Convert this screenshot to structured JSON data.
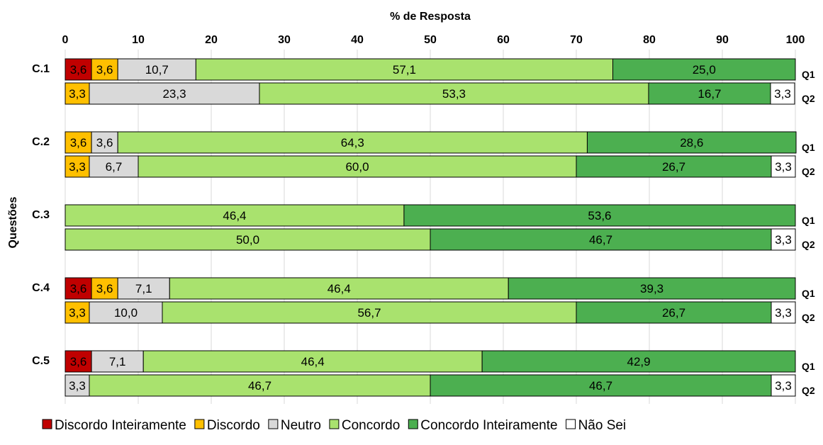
{
  "chart_data": {
    "type": "bar",
    "orientation": "horizontal-stacked",
    "title": "",
    "xlabel": "% de Resposta",
    "ylabel": "Questões",
    "xlim": [
      0,
      100
    ],
    "xticks": [
      "0",
      "10",
      "20",
      "30",
      "40",
      "50",
      "60",
      "70",
      "80",
      "90",
      "100"
    ],
    "grid": true,
    "legend_position": "bottom",
    "series": [
      {
        "name": "Discordo Inteiramente",
        "color": "#C00000"
      },
      {
        "name": "Discordo",
        "color": "#FFC000"
      },
      {
        "name": "Neutro",
        "color": "#D9D9D9"
      },
      {
        "name": "Concordo",
        "color": "#A9E26E"
      },
      {
        "name": "Concordo Inteiramente",
        "color": "#4CAF50"
      },
      {
        "name": "Não Sei",
        "color": "#FFFFFF"
      }
    ],
    "categories": [
      {
        "label": "C.1",
        "rows": [
          {
            "label": "Q1",
            "values": [
              3.6,
              3.6,
              10.7,
              57.1,
              25.0,
              0
            ],
            "labels": [
              "3,6",
              "3,6",
              "10,7",
              "57,1",
              "25,0",
              ""
            ]
          },
          {
            "label": "Q2",
            "values": [
              0,
              3.3,
              23.3,
              53.3,
              16.7,
              3.3
            ],
            "labels": [
              "",
              "3,3",
              "23,3",
              "53,3",
              "16,7",
              "3,3"
            ]
          }
        ]
      },
      {
        "label": "C.2",
        "rows": [
          {
            "label": "Q1",
            "values": [
              0,
              3.6,
              3.6,
              64.3,
              28.6,
              0
            ],
            "labels": [
              "",
              "3,6",
              "3,6",
              "64,3",
              "28,6",
              ""
            ]
          },
          {
            "label": "Q2",
            "values": [
              0,
              3.3,
              6.7,
              60.0,
              26.7,
              3.3
            ],
            "labels": [
              "",
              "3,3",
              "6,7",
              "60,0",
              "26,7",
              "3,3"
            ]
          }
        ]
      },
      {
        "label": "C.3",
        "rows": [
          {
            "label": "Q1",
            "values": [
              0,
              0,
              0,
              46.4,
              53.6,
              0
            ],
            "labels": [
              "",
              "",
              "",
              "46,4",
              "53,6",
              ""
            ]
          },
          {
            "label": "Q2",
            "values": [
              0,
              0,
              0,
              50.0,
              46.7,
              3.3
            ],
            "labels": [
              "",
              "",
              "",
              "50,0",
              "46,7",
              "3,3"
            ]
          }
        ]
      },
      {
        "label": "C.4",
        "rows": [
          {
            "label": "Q1",
            "values": [
              3.6,
              3.6,
              7.1,
              46.4,
              39.3,
              0
            ],
            "labels": [
              "3,6",
              "3,6",
              "7,1",
              "46,4",
              "39,3",
              ""
            ]
          },
          {
            "label": "Q2",
            "values": [
              0,
              3.3,
              10.0,
              56.7,
              26.7,
              3.3
            ],
            "labels": [
              "",
              "3,3",
              "10,0",
              "56,7",
              "26,7",
              "3,3"
            ]
          }
        ]
      },
      {
        "label": "C.5",
        "rows": [
          {
            "label": "Q1",
            "values": [
              3.6,
              0,
              7.1,
              46.4,
              42.9,
              0
            ],
            "labels": [
              "3,6",
              "",
              "7,1",
              "46,4",
              "42,9",
              ""
            ]
          },
          {
            "label": "Q2",
            "values": [
              0,
              0,
              3.3,
              46.7,
              46.7,
              3.3
            ],
            "labels": [
              "",
              "",
              "3,3",
              "46,7",
              "46,7",
              "3,3"
            ]
          }
        ]
      }
    ]
  }
}
